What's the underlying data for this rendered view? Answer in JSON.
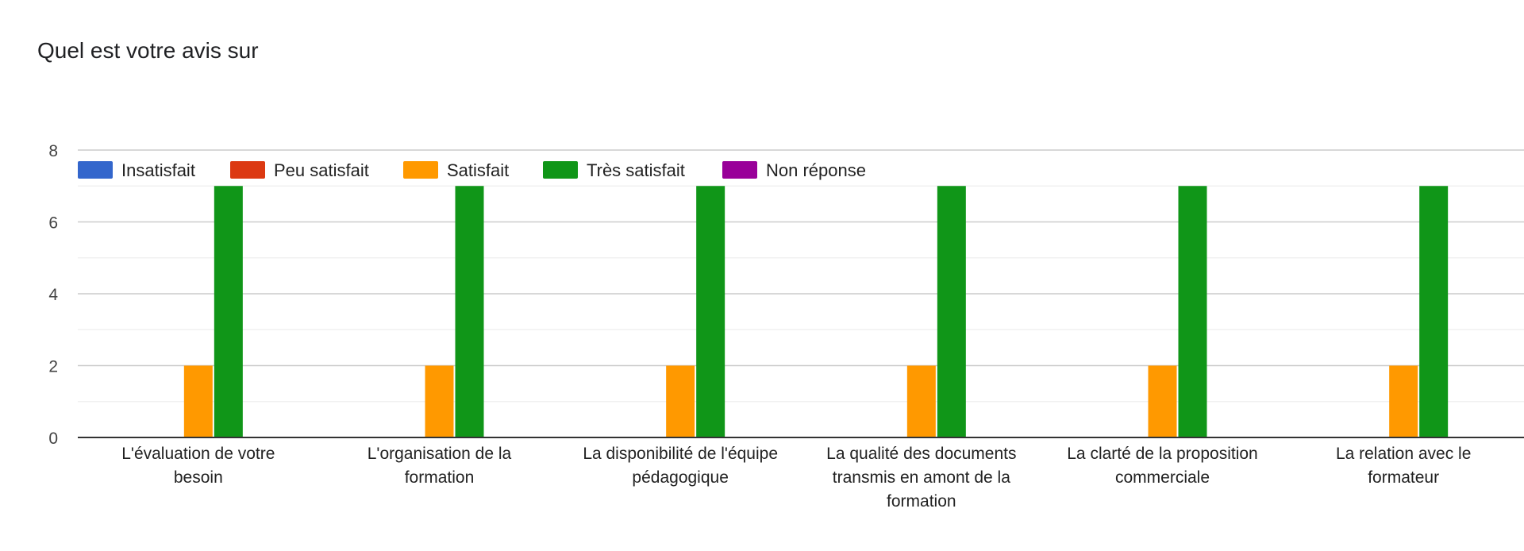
{
  "chart_data": {
    "type": "bar",
    "title": "Quel est votre avis sur",
    "categories": [
      [
        "L'évaluation de votre",
        "besoin"
      ],
      [
        "L'organisation de la",
        "formation"
      ],
      [
        "La disponibilité de l'équipe",
        "pédagogique"
      ],
      [
        "La qualité des documents",
        "transmis en amont de la",
        "formation"
      ],
      [
        "La clarté de la proposition",
        "commerciale"
      ],
      [
        "La relation avec le",
        "formateur"
      ]
    ],
    "series": [
      {
        "name": "Insatisfait",
        "color": "#3366cc",
        "values": [
          0,
          0,
          0,
          0,
          0,
          0
        ]
      },
      {
        "name": "Peu satisfait",
        "color": "#dc3912",
        "values": [
          0,
          0,
          0,
          0,
          0,
          0
        ]
      },
      {
        "name": "Satisfait",
        "color": "#ff9900",
        "values": [
          2,
          2,
          2,
          2,
          2,
          2
        ]
      },
      {
        "name": "Très satisfait",
        "color": "#109618",
        "values": [
          7,
          7,
          7,
          7,
          7,
          7
        ]
      },
      {
        "name": "Non réponse",
        "color": "#990099",
        "values": [
          0,
          0,
          0,
          0,
          0,
          0
        ]
      }
    ],
    "ylim": [
      0,
      8
    ],
    "yticks": [
      0,
      2,
      4,
      6,
      8
    ],
    "legend_position": "top",
    "grid": true
  }
}
